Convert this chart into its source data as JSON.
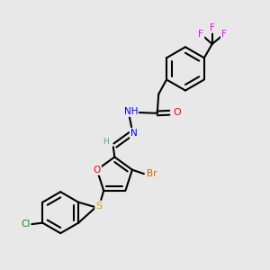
{
  "background_color": "#e8e8e8",
  "bond_color": "#000000",
  "atom_colors": {
    "F": "#ff00ff",
    "O": "#ff0000",
    "N": "#0000ff",
    "S": "#ccaa00",
    "Br": "#cc6600",
    "Cl": "#009900",
    "H": "#44aaaa",
    "C": "#000000"
  },
  "figsize": [
    3.0,
    3.0
  ],
  "dpi": 100
}
